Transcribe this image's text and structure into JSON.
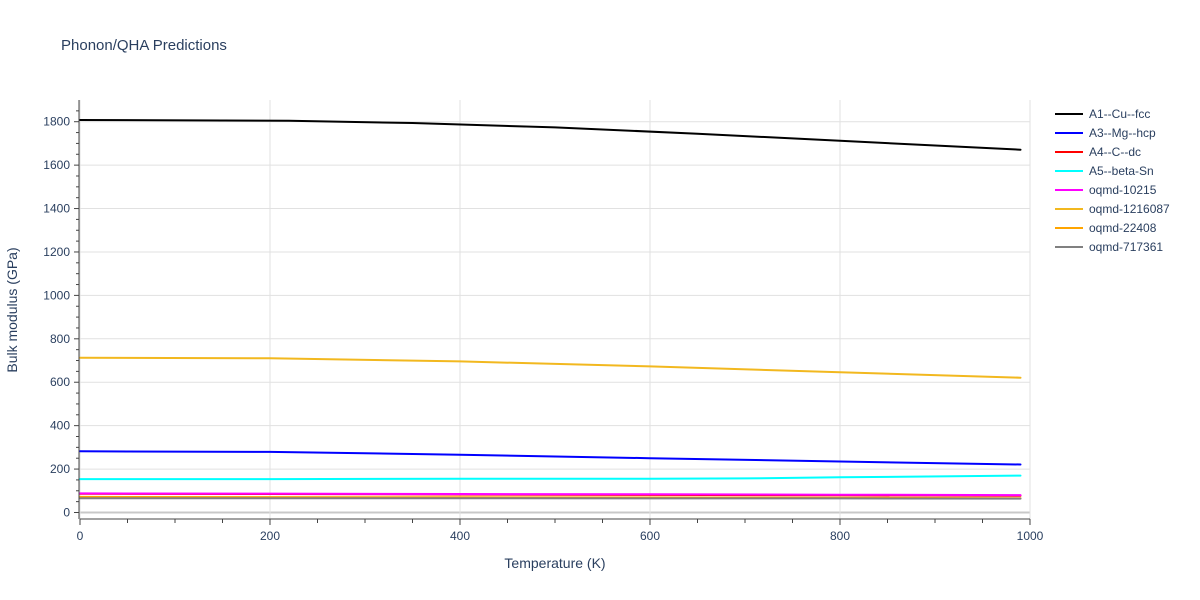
{
  "chart_data": {
    "type": "line",
    "title": "Phonon/QHA Predictions",
    "xlabel": "Temperature (K)",
    "ylabel": "Bulk modulus (GPa)",
    "xlim": [
      0,
      1000
    ],
    "ylim": [
      -30,
      1900
    ],
    "xticks": [
      0,
      200,
      400,
      600,
      800,
      1000
    ],
    "yticks": [
      0,
      200,
      400,
      600,
      800,
      1000,
      1200,
      1400,
      1600,
      1800
    ],
    "grid": true,
    "legend_position": "right",
    "series": [
      {
        "name": "A1--Cu--fcc",
        "color": "#000000",
        "x": [
          0,
          220,
          350,
          500,
          650,
          800,
          990
        ],
        "y": [
          1808,
          1804,
          1794,
          1774,
          1745,
          1712,
          1671
        ]
      },
      {
        "name": "A3--Mg--hcp",
        "color": "#0000ff",
        "x": [
          0,
          200,
          400,
          600,
          800,
          990
        ],
        "y": [
          282,
          279,
          266,
          250,
          235,
          221
        ]
      },
      {
        "name": "A4--C--dc",
        "color": "#ff0000",
        "x": [
          0,
          200,
          400,
          600,
          800,
          990
        ],
        "y": [
          86,
          85,
          83,
          81,
          79,
          77
        ]
      },
      {
        "name": "A5--beta-Sn",
        "color": "#00ffff",
        "x": [
          0,
          200,
          400,
          600,
          700,
          800,
          990
        ],
        "y": [
          154,
          154,
          155,
          155,
          157,
          162,
          170
        ]
      },
      {
        "name": "oqmd-10215",
        "color": "#ff00ff",
        "x": [
          0,
          200,
          400,
          600,
          800,
          990
        ],
        "y": [
          88,
          87,
          85,
          84,
          82,
          80
        ]
      },
      {
        "name": "oqmd-1216087",
        "color": "#f2b81f",
        "x": [
          0,
          200,
          400,
          600,
          800,
          990
        ],
        "y": [
          713,
          710,
          696,
          673,
          646,
          621
        ]
      },
      {
        "name": "oqmd-22408",
        "color": "#ffa500",
        "x": [
          0,
          200,
          400,
          600,
          800,
          990
        ],
        "y": [
          72,
          71,
          70,
          69,
          68,
          66
        ]
      },
      {
        "name": "oqmd-717361",
        "color": "#808080",
        "x": [
          0,
          200,
          400,
          600,
          800,
          990
        ],
        "y": [
          66,
          66,
          66,
          65,
          65,
          64
        ]
      }
    ]
  }
}
